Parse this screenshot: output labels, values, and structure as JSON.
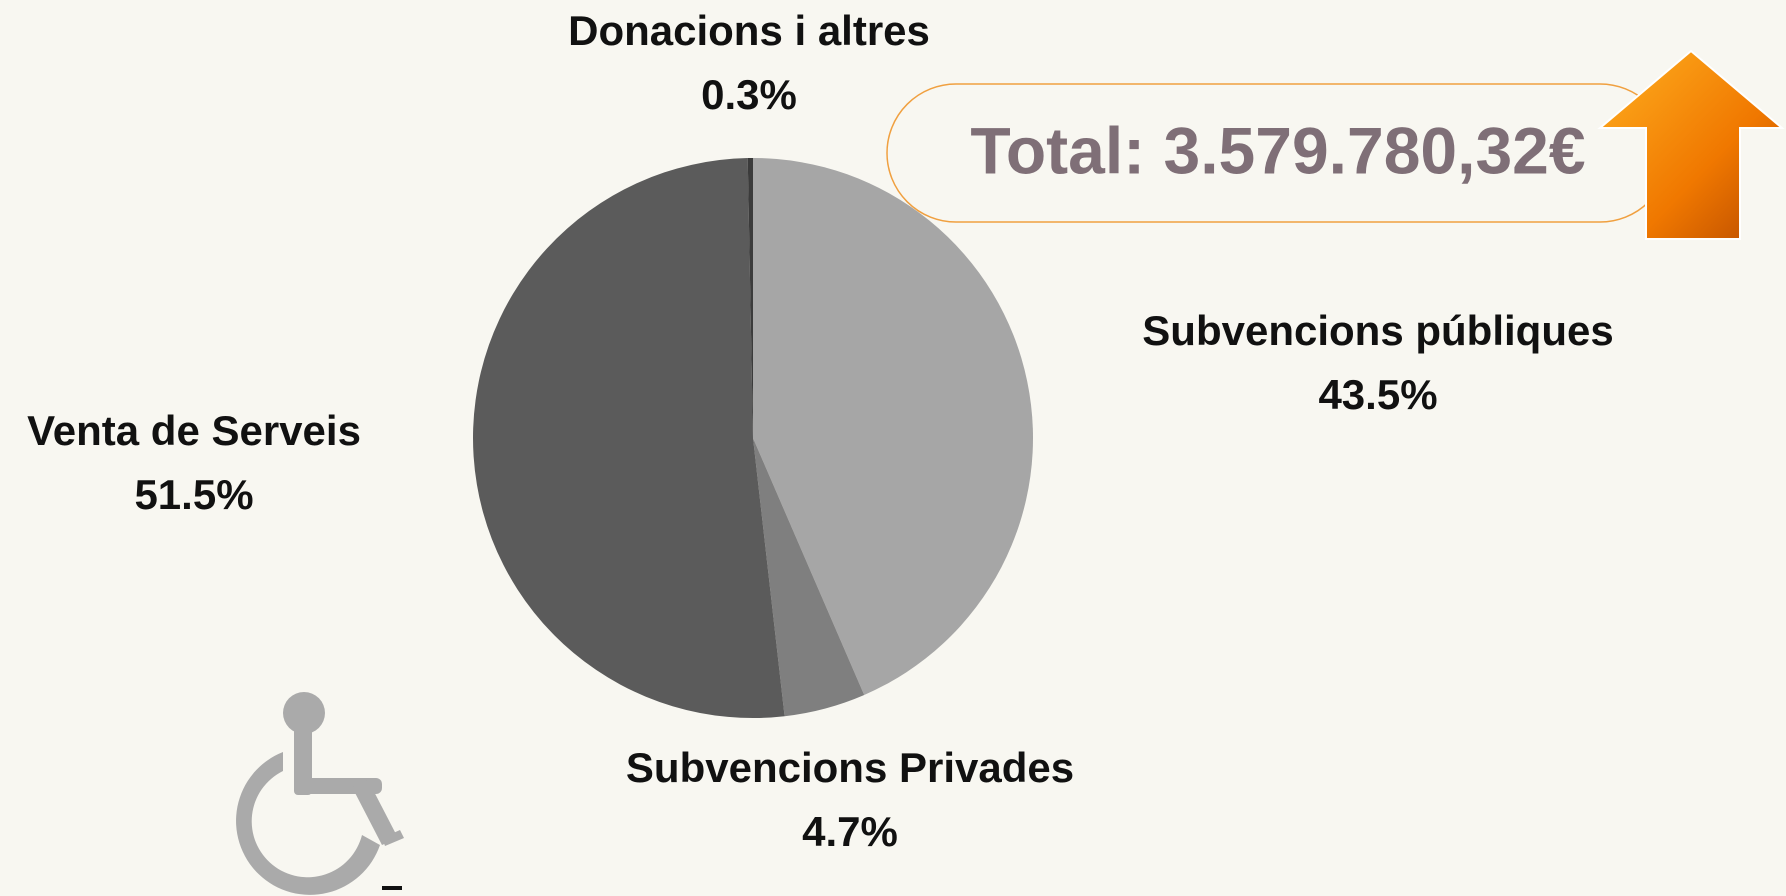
{
  "chart_data": {
    "type": "pie",
    "annotation": "Total: 3.579.780,32€",
    "categories": [
      "Subvencions públiques",
      "Subvencions Privades",
      "Venta de Serveis",
      "Donacions i altres"
    ],
    "values": [
      43.5,
      4.7,
      51.5,
      0.3
    ],
    "value_labels": [
      "43.5%",
      "4.7%",
      "51.5%",
      "0.3%"
    ],
    "colors": [
      "#a6a6a6",
      "#7f7f7f",
      "#5b5b5b",
      "#3b3b3b"
    ]
  }
}
